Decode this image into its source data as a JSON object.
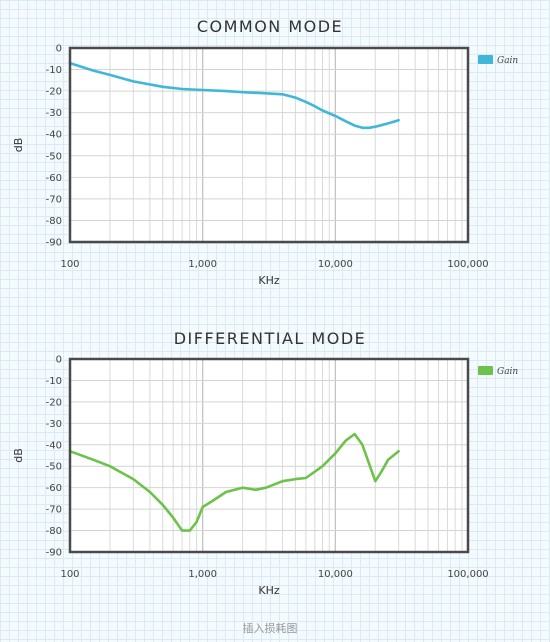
{
  "caption": "插入损耗图",
  "chart_data": [
    {
      "type": "line",
      "title": "COMMON MODE",
      "xlabel": "KHz",
      "ylabel": "dB",
      "xscale": "log",
      "xlim": [
        100,
        100000
      ],
      "ylim": [
        -90,
        0
      ],
      "xticks": [
        100,
        1000,
        10000,
        100000
      ],
      "xtick_labels": [
        "100",
        "1,000",
        "10,000",
        "100,000"
      ],
      "yticks": [
        0,
        -10,
        -20,
        -30,
        -40,
        -50,
        -60,
        -70,
        -80,
        -90
      ],
      "grid": true,
      "legend_position": "top-right",
      "series": [
        {
          "name": "Gain",
          "color": "#3fb7d8",
          "x": [
            100,
            150,
            200,
            300,
            500,
            700,
            1000,
            1500,
            2000,
            3000,
            4000,
            5000,
            6000,
            7000,
            8000,
            10000,
            12000,
            14000,
            16000,
            18000,
            20000,
            25000,
            30000
          ],
          "values": [
            -7,
            -10.5,
            -12.5,
            -15.5,
            -18,
            -19,
            -19.5,
            -20,
            -20.5,
            -21,
            -21.5,
            -23,
            -25,
            -27,
            -29,
            -31.5,
            -34,
            -36,
            -37,
            -37,
            -36.5,
            -35,
            -33.5
          ]
        }
      ]
    },
    {
      "type": "line",
      "title": "DIFFERENTIAL MODE",
      "xlabel": "KHz",
      "ylabel": "dB",
      "xscale": "log",
      "xlim": [
        100,
        100000
      ],
      "ylim": [
        -90,
        0
      ],
      "xticks": [
        100,
        1000,
        10000,
        100000
      ],
      "xtick_labels": [
        "100",
        "1,000",
        "10,000",
        "100,000"
      ],
      "yticks": [
        0,
        -10,
        -20,
        -30,
        -40,
        -50,
        -60,
        -70,
        -80,
        -90
      ],
      "grid": true,
      "legend_position": "top-right",
      "series": [
        {
          "name": "Gain",
          "color": "#6cc24a",
          "x": [
            100,
            150,
            200,
            300,
            400,
            500,
            600,
            700,
            800,
            900,
            1000,
            1200,
            1500,
            2000,
            2500,
            3000,
            4000,
            5000,
            6000,
            8000,
            10000,
            12000,
            14000,
            16000,
            18000,
            20000,
            22000,
            25000,
            30000
          ],
          "values": [
            -43,
            -47,
            -50,
            -56,
            -62,
            -68,
            -74,
            -80,
            -80,
            -76,
            -69,
            -66,
            -62,
            -60,
            -61,
            -60,
            -57,
            -56,
            -55.5,
            -50,
            -44,
            -38,
            -35,
            -40,
            -49,
            -57,
            -53,
            -47,
            -43
          ]
        }
      ]
    }
  ]
}
